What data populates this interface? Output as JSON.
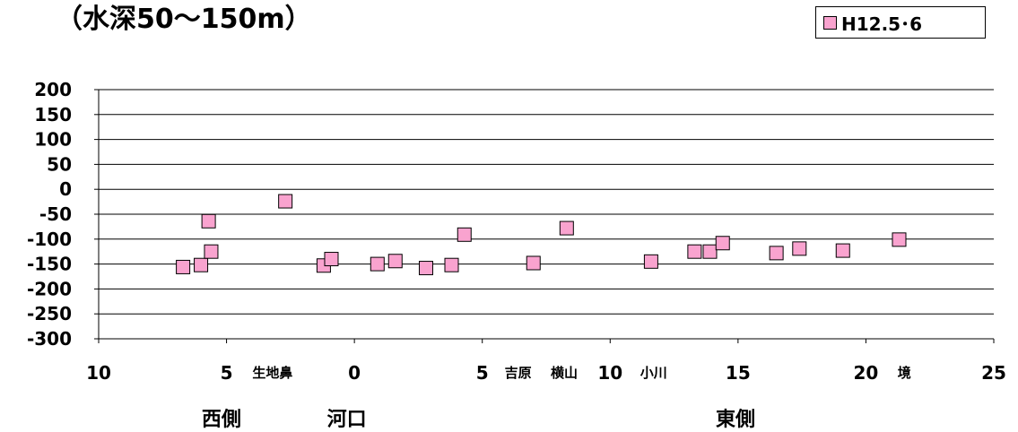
{
  "chart_data": {
    "type": "scatter",
    "title": "（水深50〜150m）",
    "legend": {
      "position": "top-right",
      "entries": [
        "H12.5･6"
      ]
    },
    "ylim": [
      -300,
      200
    ],
    "y_ticks": [
      "200",
      "150",
      "100",
      "50",
      "0",
      "-50",
      "-100",
      "-150",
      "-200",
      "-250",
      "-300"
    ],
    "y_tick_values": [
      200,
      150,
      100,
      50,
      0,
      -50,
      -100,
      -150,
      -200,
      -250,
      -300
    ],
    "xlim": [
      -10,
      25
    ],
    "x_ticks": [
      "10",
      "5",
      "0",
      "5",
      "10",
      "15",
      "20",
      "25"
    ],
    "x_tick_values": [
      -10,
      -5,
      0,
      5,
      10,
      15,
      20,
      25
    ],
    "x_place_labels": [
      {
        "text": "生地鼻",
        "x": -3.2
      },
      {
        "text": "吉原",
        "x": 6.4
      },
      {
        "text": "横山",
        "x": 8.2
      },
      {
        "text": "小川",
        "x": 11.7
      },
      {
        "text": "境",
        "x": 21.5
      }
    ],
    "region_labels": [
      {
        "text": "西側",
        "x": -5.2
      },
      {
        "text": "河口",
        "x": -0.3
      },
      {
        "text": "東側",
        "x": 14.9
      }
    ],
    "grid": true,
    "colors": {
      "marker": "#f9a3cf",
      "marker_border": "#000000"
    },
    "series": [
      {
        "name": "H12.5･6",
        "points": [
          {
            "x": -6.7,
            "y": -156
          },
          {
            "x": -6.0,
            "y": -152
          },
          {
            "x": -5.7,
            "y": -64
          },
          {
            "x": -5.6,
            "y": -125
          },
          {
            "x": -2.7,
            "y": -24
          },
          {
            "x": -1.2,
            "y": -153
          },
          {
            "x": -0.9,
            "y": -140
          },
          {
            "x": 0.9,
            "y": -150
          },
          {
            "x": 1.6,
            "y": -144
          },
          {
            "x": 2.8,
            "y": -158
          },
          {
            "x": 3.8,
            "y": -152
          },
          {
            "x": 4.3,
            "y": -91
          },
          {
            "x": 7.0,
            "y": -148
          },
          {
            "x": 8.3,
            "y": -78
          },
          {
            "x": 11.6,
            "y": -145
          },
          {
            "x": 13.3,
            "y": -125
          },
          {
            "x": 13.9,
            "y": -125
          },
          {
            "x": 14.4,
            "y": -108
          },
          {
            "x": 16.5,
            "y": -128
          },
          {
            "x": 17.4,
            "y": -119
          },
          {
            "x": 19.1,
            "y": -123
          },
          {
            "x": 21.3,
            "y": -101
          }
        ]
      }
    ]
  }
}
